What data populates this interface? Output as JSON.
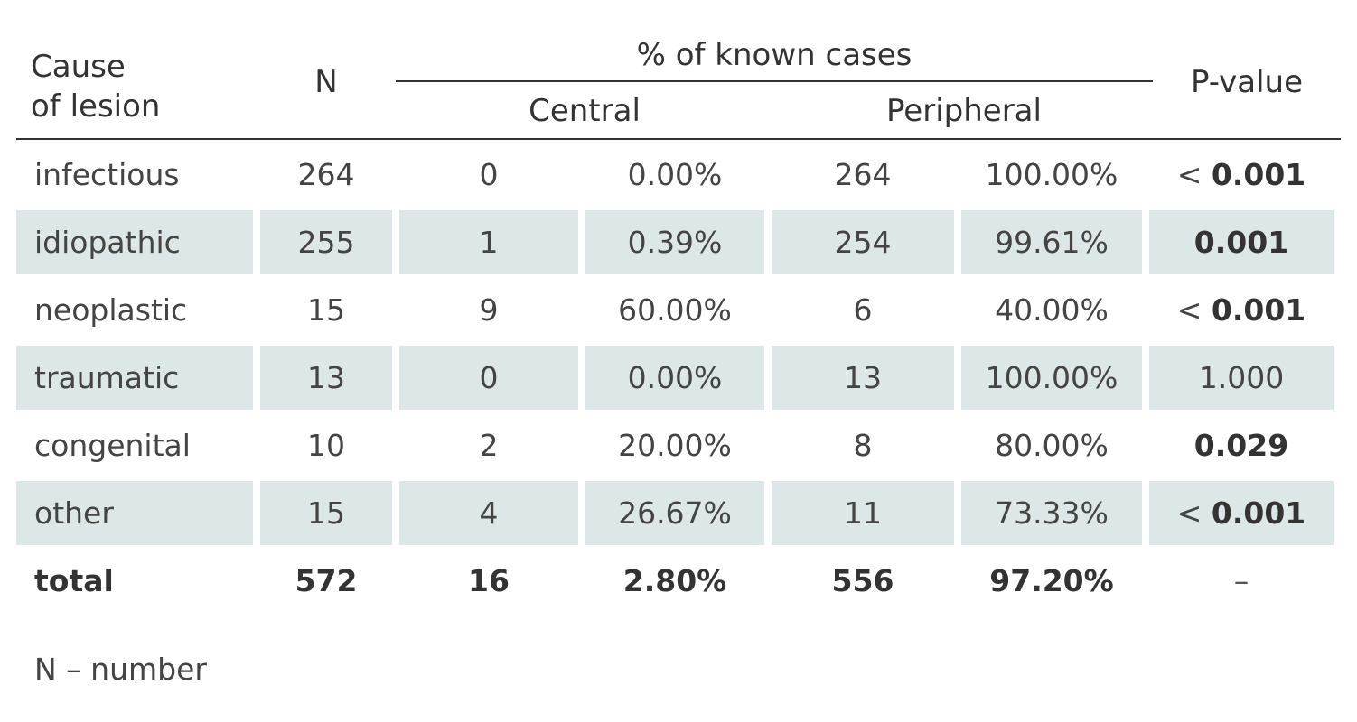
{
  "header": {
    "cause_line1": "Cause",
    "cause_line2": "of lesion",
    "n": "N",
    "group": "% of known cases",
    "central": "Central",
    "peripheral": "Peripheral",
    "p_value": "P-value"
  },
  "rows": [
    {
      "cause": "infectious",
      "n": "264",
      "central_n": "0",
      "central_pct": "0.00%",
      "peripheral_n": "264",
      "peripheral_pct": "100.00%",
      "p_prefix": "< ",
      "p_value": "0.001",
      "p_bold": true
    },
    {
      "cause": "idiopathic",
      "n": "255",
      "central_n": "1",
      "central_pct": "0.39%",
      "peripheral_n": "254",
      "peripheral_pct": "99.61%",
      "p_prefix": "",
      "p_value": "0.001",
      "p_bold": true
    },
    {
      "cause": "neoplastic",
      "n": "15",
      "central_n": "9",
      "central_pct": "60.00%",
      "peripheral_n": "6",
      "peripheral_pct": "40.00%",
      "p_prefix": "< ",
      "p_value": "0.001",
      "p_bold": true
    },
    {
      "cause": "traumatic",
      "n": "13",
      "central_n": "0",
      "central_pct": "0.00%",
      "peripheral_n": "13",
      "peripheral_pct": "100.00%",
      "p_prefix": "",
      "p_value": "1.000",
      "p_bold": false
    },
    {
      "cause": "congenital",
      "n": "10",
      "central_n": "2",
      "central_pct": "20.00%",
      "peripheral_n": "8",
      "peripheral_pct": "80.00%",
      "p_prefix": "",
      "p_value": "0.029",
      "p_bold": true
    },
    {
      "cause": "other",
      "n": "15",
      "central_n": "4",
      "central_pct": "26.67%",
      "peripheral_n": "11",
      "peripheral_pct": "73.33%",
      "p_prefix": "< ",
      "p_value": "0.001",
      "p_bold": true
    }
  ],
  "total": {
    "cause": "total",
    "n": "572",
    "central_n": "16",
    "central_pct": "2.80%",
    "peripheral_n": "556",
    "peripheral_pct": "97.20%",
    "p_value": "–"
  },
  "footnote": "N – number",
  "colors": {
    "shaded_row": "#dde7e7",
    "text": "#333333"
  }
}
